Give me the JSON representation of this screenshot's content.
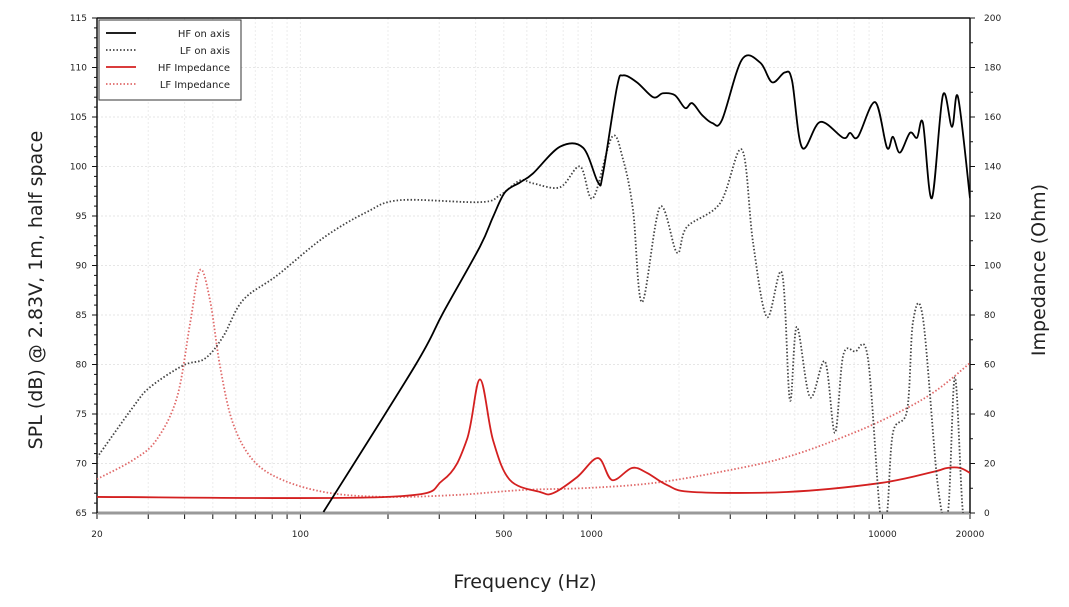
{
  "chart_data": {
    "type": "line",
    "title": "",
    "xlabel": "Frequency (Hz)",
    "ylabel": "SPL (dB) @ 2.83V, 1m, half space",
    "y2label": "Impedance (Ohm)",
    "xscale": "log",
    "xlim": [
      20,
      20000
    ],
    "ylim": [
      65,
      115
    ],
    "y2lim": [
      0,
      200
    ],
    "grid": true,
    "legend_position": "top-left",
    "x_ticks": [
      "20",
      "100",
      "500",
      "1000",
      "10000",
      "20000"
    ],
    "x_tick_values": [
      20,
      100,
      500,
      1000,
      10000,
      20000
    ],
    "y_ticks": [
      "65",
      "70",
      "75",
      "80",
      "85",
      "90",
      "95",
      "100",
      "105",
      "110",
      "115"
    ],
    "y2_ticks": [
      "0",
      "20",
      "40",
      "60",
      "80",
      "100",
      "120",
      "140",
      "160",
      "180",
      "200"
    ],
    "series": [
      {
        "name": "HF on axis",
        "axis": "left",
        "color": "#000000",
        "style": "solid",
        "points": [
          [
            120,
            65.1
          ],
          [
            248,
            79.9
          ],
          [
            309,
            85.2
          ],
          [
            414,
            91.9
          ],
          [
            459,
            94.9
          ],
          [
            505,
            97.4
          ],
          [
            569,
            98.4
          ],
          [
            630,
            99.3
          ],
          [
            780,
            102
          ],
          [
            936,
            101.9
          ],
          [
            1054,
            98.4
          ],
          [
            1096,
            99.3
          ],
          [
            1224,
            108
          ],
          [
            1285,
            109.2
          ],
          [
            1434,
            108.5
          ],
          [
            1630,
            107
          ],
          [
            1762,
            107.4
          ],
          [
            1937,
            107.2
          ],
          [
            2100,
            105.9
          ],
          [
            2220,
            106.4
          ],
          [
            2400,
            105.2
          ],
          [
            2600,
            104.4
          ],
          [
            2810,
            104.7
          ],
          [
            3290,
            110.8
          ],
          [
            3800,
            110.5
          ],
          [
            4180,
            108.5
          ],
          [
            4620,
            109.5
          ],
          [
            4890,
            108.7
          ],
          [
            5300,
            101.9
          ],
          [
            6110,
            104.5
          ],
          [
            7330,
            102.9
          ],
          [
            7740,
            103.4
          ],
          [
            8240,
            103
          ],
          [
            9440,
            106.5
          ],
          [
            10370,
            101.9
          ],
          [
            10870,
            103
          ],
          [
            11480,
            101.4
          ],
          [
            12440,
            103.4
          ],
          [
            13150,
            102.9
          ],
          [
            13780,
            104.4
          ],
          [
            14790,
            96.8
          ],
          [
            16140,
            107.2
          ],
          [
            17340,
            104
          ],
          [
            18190,
            107
          ],
          [
            20000,
            96.8
          ]
        ]
      },
      {
        "name": "LF on axis",
        "axis": "left",
        "color": "#444444",
        "style": "dotted",
        "points": [
          [
            20,
            70.6
          ],
          [
            26.6,
            75.7
          ],
          [
            30.4,
            77.7
          ],
          [
            39.5,
            79.9
          ],
          [
            47,
            80.6
          ],
          [
            54.2,
            82.8
          ],
          [
            63.5,
            86.5
          ],
          [
            83.2,
            89
          ],
          [
            120,
            92.8
          ],
          [
            169,
            95.4
          ],
          [
            220,
            96.6
          ],
          [
            414,
            96.4
          ],
          [
            485,
            97.1
          ],
          [
            569,
            98.6
          ],
          [
            630,
            98.3
          ],
          [
            780,
            97.9
          ],
          [
            914,
            100
          ],
          [
            1012,
            96.8
          ],
          [
            1178,
            103
          ],
          [
            1285,
            100.7
          ],
          [
            1390,
            95.6
          ],
          [
            1493,
            86.3
          ],
          [
            1720,
            95.9
          ],
          [
            1968,
            91.3
          ],
          [
            2130,
            93.9
          ],
          [
            2770,
            96.3
          ],
          [
            3290,
            101.7
          ],
          [
            3590,
            92.4
          ],
          [
            4010,
            84.8
          ],
          [
            4520,
            89.2
          ],
          [
            4810,
            76.4
          ],
          [
            5080,
            83.8
          ],
          [
            5640,
            76.7
          ],
          [
            6350,
            80.3
          ],
          [
            6870,
            73.1
          ],
          [
            7330,
            80.9
          ],
          [
            8050,
            81.3
          ],
          [
            8910,
            80.7
          ],
          [
            9820,
            65
          ],
          [
            10370,
            65
          ],
          [
            10870,
            73.1
          ],
          [
            12160,
            75.4
          ],
          [
            12740,
            84.3
          ],
          [
            13780,
            84.7
          ],
          [
            15530,
            67.6
          ],
          [
            16790,
            65
          ],
          [
            17750,
            78.7
          ],
          [
            18920,
            65
          ],
          [
            20000,
            65
          ]
        ]
      },
      {
        "name": "HF Impedance",
        "axis": "right",
        "color": "#d42020",
        "style": "solid",
        "points": [
          [
            20,
            6.5
          ],
          [
            200,
            6.5
          ],
          [
            309,
            13.3
          ],
          [
            373,
            29.5
          ],
          [
            414,
            54
          ],
          [
            459,
            29.5
          ],
          [
            525,
            13.3
          ],
          [
            666,
            8.5
          ],
          [
            738,
            8
          ],
          [
            893,
            14.5
          ],
          [
            1054,
            22.2
          ],
          [
            1178,
            13.3
          ],
          [
            1378,
            18.2
          ],
          [
            1553,
            16.2
          ],
          [
            1820,
            11.3
          ],
          [
            2230,
            8.5
          ],
          [
            4690,
            8.5
          ],
          [
            9820,
            12.1
          ],
          [
            14930,
            16.6
          ],
          [
            16680,
            18.2
          ],
          [
            18500,
            18.2
          ],
          [
            20000,
            16.2
          ]
        ]
      },
      {
        "name": "LF Impedance",
        "axis": "right",
        "color": "#e06a6a",
        "style": "dotted",
        "points": [
          [
            20,
            13.7
          ],
          [
            26.6,
            21.4
          ],
          [
            32,
            29.5
          ],
          [
            37.7,
            46.9
          ],
          [
            41.8,
            76.8
          ],
          [
            45.2,
            98.2
          ],
          [
            48.9,
            86
          ],
          [
            53,
            59
          ],
          [
            58.6,
            36.4
          ],
          [
            68.7,
            21.4
          ],
          [
            87,
            13.3
          ],
          [
            126,
            8.1
          ],
          [
            200,
            6.5
          ],
          [
            345,
            7.3
          ],
          [
            582,
            9.3
          ],
          [
            966,
            10.1
          ],
          [
            1630,
            12.1
          ],
          [
            2770,
            16.6
          ],
          [
            4690,
            22.6
          ],
          [
            7930,
            32.3
          ],
          [
            11780,
            41.6
          ],
          [
            15400,
            49.7
          ],
          [
            20000,
            60.6
          ]
        ]
      }
    ]
  }
}
